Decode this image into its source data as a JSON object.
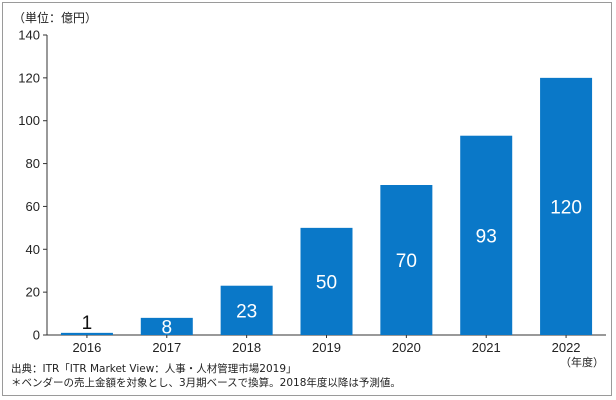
{
  "chart_data": {
    "type": "bar",
    "unit_label": "（単位：億円）",
    "categories": [
      "2016",
      "2017",
      "2018",
      "2019",
      "2020",
      "2021",
      "2022"
    ],
    "values": [
      1,
      8,
      23,
      50,
      70,
      93,
      120
    ],
    "data_labels": [
      "1",
      "8",
      "23",
      "50",
      "70",
      "93",
      "120"
    ],
    "x_unit_label": "（年度）",
    "ylim": [
      0,
      140
    ],
    "yticks": [
      0,
      20,
      40,
      60,
      80,
      100,
      120,
      140
    ],
    "grid": false,
    "bar_color": "#0a78c8"
  },
  "footer": {
    "source": "出典：ITR「ITR Market View：人事・人材管理市場2019」",
    "note": "＊ベンダーの売上金額を対象とし、3月期ベースで換算。2018年度以降は予測値。"
  }
}
